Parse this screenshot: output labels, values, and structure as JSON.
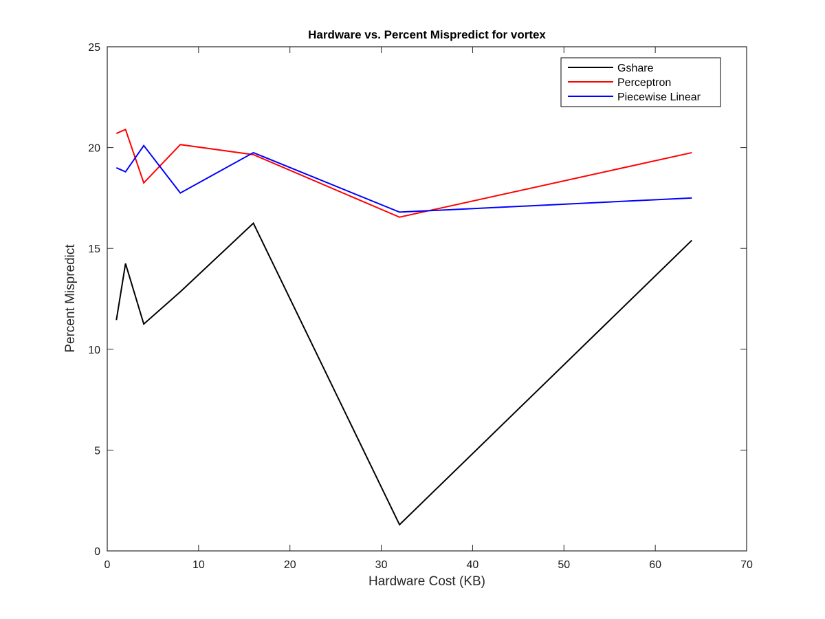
{
  "chart_data": {
    "type": "line",
    "title": "Hardware vs. Percent Mispredict for vortex",
    "xlabel": "Hardware Cost (KB)",
    "ylabel": "Percent Mispredict",
    "xlim": [
      0,
      70
    ],
    "ylim": [
      0,
      25
    ],
    "xticks": [
      0,
      10,
      20,
      30,
      40,
      50,
      60,
      70
    ],
    "yticks": [
      0,
      5,
      10,
      15,
      20,
      25
    ],
    "grid": false,
    "legend_position": "top-right",
    "x": [
      1,
      2,
      4,
      8,
      16,
      32,
      64
    ],
    "series": [
      {
        "name": "Gshare",
        "color": "#000000",
        "values": [
          11.45,
          14.25,
          11.25,
          12.85,
          16.25,
          1.3,
          15.4
        ]
      },
      {
        "name": "Perceptron",
        "color": "#ff0000",
        "values": [
          20.7,
          20.9,
          18.25,
          20.15,
          19.65,
          16.55,
          19.75
        ]
      },
      {
        "name": "Piecewise Linear",
        "color": "#0000ff",
        "values": [
          19.0,
          18.8,
          20.1,
          17.75,
          19.75,
          16.8,
          17.5
        ]
      }
    ]
  }
}
